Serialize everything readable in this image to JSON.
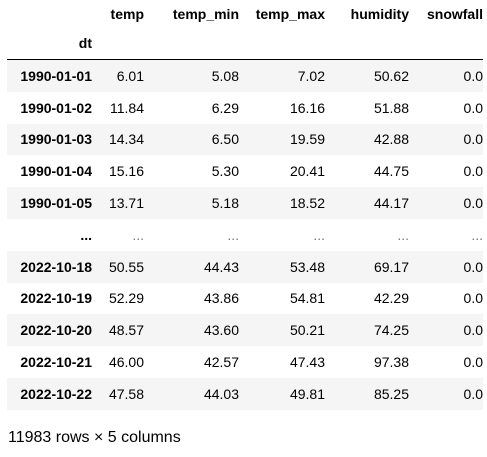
{
  "table": {
    "columns": [
      "temp",
      "temp_min",
      "temp_max",
      "humidity",
      "snowfall"
    ],
    "index_name": "dt",
    "rows": [
      {
        "index": "1990-01-01",
        "values": [
          "6.01",
          "5.08",
          "7.02",
          "50.62",
          "0.0"
        ]
      },
      {
        "index": "1990-01-02",
        "values": [
          "11.84",
          "6.29",
          "16.16",
          "51.88",
          "0.0"
        ]
      },
      {
        "index": "1990-01-03",
        "values": [
          "14.34",
          "6.50",
          "19.59",
          "42.88",
          "0.0"
        ]
      },
      {
        "index": "1990-01-04",
        "values": [
          "15.16",
          "5.30",
          "20.41",
          "44.75",
          "0.0"
        ]
      },
      {
        "index": "1990-01-05",
        "values": [
          "13.71",
          "5.18",
          "18.52",
          "44.17",
          "0.0"
        ]
      },
      {
        "index": "...",
        "values": [
          "...",
          "...",
          "...",
          "...",
          "..."
        ]
      },
      {
        "index": "2022-10-18",
        "values": [
          "50.55",
          "44.43",
          "53.48",
          "69.17",
          "0.0"
        ]
      },
      {
        "index": "2022-10-19",
        "values": [
          "52.29",
          "43.86",
          "54.81",
          "42.29",
          "0.0"
        ]
      },
      {
        "index": "2022-10-20",
        "values": [
          "48.57",
          "43.60",
          "50.21",
          "74.25",
          "0.0"
        ]
      },
      {
        "index": "2022-10-21",
        "values": [
          "46.00",
          "42.57",
          "47.43",
          "97.38",
          "0.0"
        ]
      },
      {
        "index": "2022-10-22",
        "values": [
          "47.58",
          "44.03",
          "49.81",
          "85.25",
          "0.0"
        ]
      }
    ]
  },
  "footer": {
    "summary": "11983 rows × 5 columns"
  }
}
